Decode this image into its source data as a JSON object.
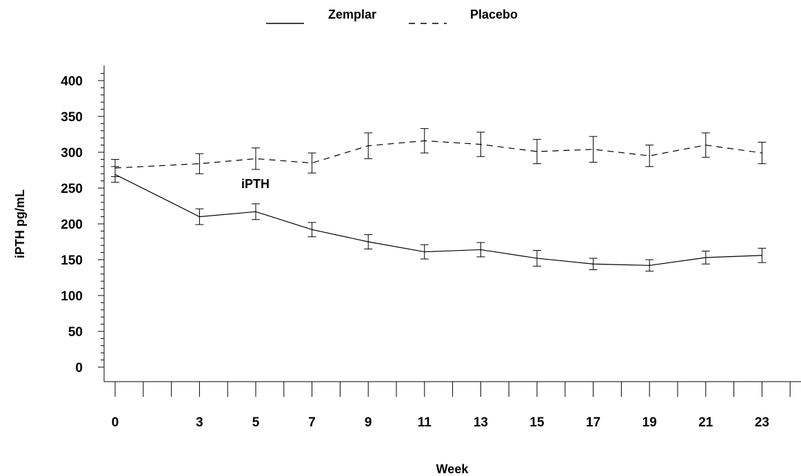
{
  "chart_data": {
    "type": "line",
    "title": "",
    "xlabel": "Week",
    "ylabel": "iPTH  pg/mL",
    "annotation": "iPTH",
    "x": [
      0,
      3,
      5,
      7,
      9,
      11,
      13,
      15,
      17,
      19,
      21,
      23
    ],
    "x_tick_labels": [
      "0",
      "3",
      "5",
      "7",
      "9",
      "11",
      "13",
      "15",
      "17",
      "19",
      "21",
      "23"
    ],
    "y_tick_labels": [
      "0",
      "50",
      "100",
      "150",
      "200",
      "250",
      "300",
      "350",
      "400"
    ],
    "xlim": [
      0,
      24
    ],
    "ylim": [
      0,
      420
    ],
    "legend_position": "top-center",
    "series": [
      {
        "name": "Zemplar",
        "style": "solid",
        "values": [
          269,
          210,
          217,
          192,
          175,
          161,
          164,
          152,
          144,
          142,
          153,
          156
        ],
        "err": [
          11,
          11,
          11,
          10,
          10,
          10,
          10,
          11,
          8,
          8,
          9,
          10
        ]
      },
      {
        "name": "Placebo",
        "style": "dashed",
        "values": [
          278,
          284,
          291,
          285,
          309,
          316,
          311,
          301,
          304,
          295,
          310,
          299
        ],
        "err": [
          12,
          14,
          15,
          14,
          18,
          17,
          17,
          17,
          18,
          15,
          17,
          15
        ]
      }
    ]
  }
}
